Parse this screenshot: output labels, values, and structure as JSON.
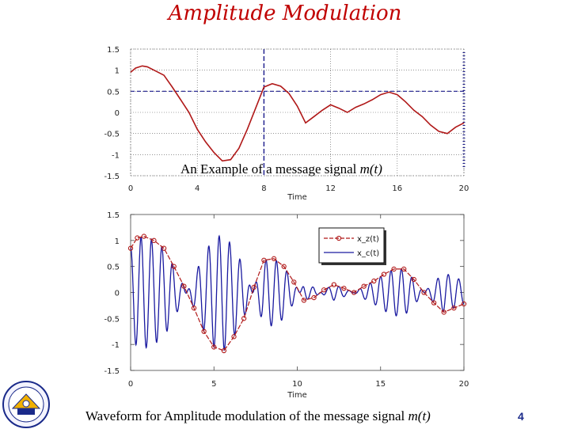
{
  "page": {
    "title": "Amplitude Modulation",
    "caption_top_prefix": "An Example of a message signal ",
    "caption_top_math": "m(t)",
    "caption_bottom_prefix": "Waveform for Amplitude modulation of the message signal ",
    "caption_bottom_math": "m(t)",
    "page_number": "4"
  },
  "colors": {
    "title": "#c00000",
    "message": "#b01818",
    "carrier": "#1a1aa0",
    "page_number": "#1a2a8a"
  },
  "chart_data": [
    {
      "type": "line",
      "title": "",
      "xlabel": "Time",
      "ylabel": "",
      "xlim": [
        0,
        20
      ],
      "ylim": [
        -1.5,
        1.5
      ],
      "xticks": [
        0,
        4,
        8,
        12,
        16,
        20
      ],
      "yticks": [
        1.5,
        1,
        0.5,
        0,
        -0.5,
        -1,
        -1.5
      ],
      "grid": true,
      "series": [
        {
          "name": "m(t)",
          "x": [
            0,
            0.3,
            0.7,
            1,
            1.5,
            2,
            2.5,
            3,
            3.5,
            4,
            4.5,
            5,
            5.5,
            6,
            6.5,
            7,
            7.5,
            8,
            8.5,
            9,
            9.5,
            10,
            10.5,
            11,
            11.5,
            12,
            12.5,
            13,
            13.5,
            14,
            14.5,
            15,
            15.5,
            16,
            16.5,
            17,
            17.5,
            18,
            18.5,
            19,
            19.5,
            20
          ],
          "y": [
            0.95,
            1.05,
            1.1,
            1.08,
            0.98,
            0.88,
            0.6,
            0.3,
            0.0,
            -0.4,
            -0.7,
            -0.95,
            -1.15,
            -1.12,
            -0.85,
            -0.4,
            0.1,
            0.6,
            0.68,
            0.62,
            0.45,
            0.15,
            -0.25,
            -0.1,
            0.05,
            0.18,
            0.1,
            0.0,
            0.12,
            0.2,
            0.3,
            0.42,
            0.48,
            0.42,
            0.25,
            0.05,
            -0.1,
            -0.3,
            -0.45,
            -0.5,
            -0.35,
            -0.25
          ]
        }
      ]
    },
    {
      "type": "line",
      "title": "",
      "xlabel": "Time",
      "ylabel": "",
      "xlim": [
        0,
        20
      ],
      "ylim": [
        -1.5,
        1.5
      ],
      "xticks": [
        0,
        5,
        10,
        15,
        20
      ],
      "yticks": [
        1.5,
        1,
        0.5,
        0,
        -0.5,
        -1,
        -1.5
      ],
      "grid": false,
      "legend": {
        "position": "top-right",
        "entries": [
          "x_z(t)",
          "x_c(t)"
        ]
      },
      "carrier_cycles_per_unit": 1.6,
      "series": [
        {
          "name": "x_z(t)",
          "x": [
            0,
            0.4,
            0.8,
            1.4,
            2,
            2.6,
            3.2,
            3.8,
            4.4,
            5,
            5.6,
            6.2,
            6.8,
            7.4,
            8,
            8.6,
            9.2,
            9.8,
            10.4,
            11,
            11.6,
            12.2,
            12.8,
            13.4,
            14,
            14.6,
            15.2,
            15.8,
            16.4,
            17,
            17.6,
            18.2,
            18.8,
            19.4,
            20
          ],
          "y": [
            0.85,
            1.05,
            1.08,
            1.0,
            0.85,
            0.5,
            0.12,
            -0.3,
            -0.75,
            -1.05,
            -1.12,
            -0.85,
            -0.5,
            0.1,
            0.62,
            0.65,
            0.5,
            0.2,
            -0.15,
            -0.1,
            0.05,
            0.15,
            0.08,
            0.0,
            0.12,
            0.22,
            0.35,
            0.45,
            0.45,
            0.25,
            0.0,
            -0.2,
            -0.38,
            -0.3,
            -0.22
          ]
        },
        {
          "name": "x_c(t)",
          "derived_from": "x_z(t)"
        }
      ]
    }
  ]
}
